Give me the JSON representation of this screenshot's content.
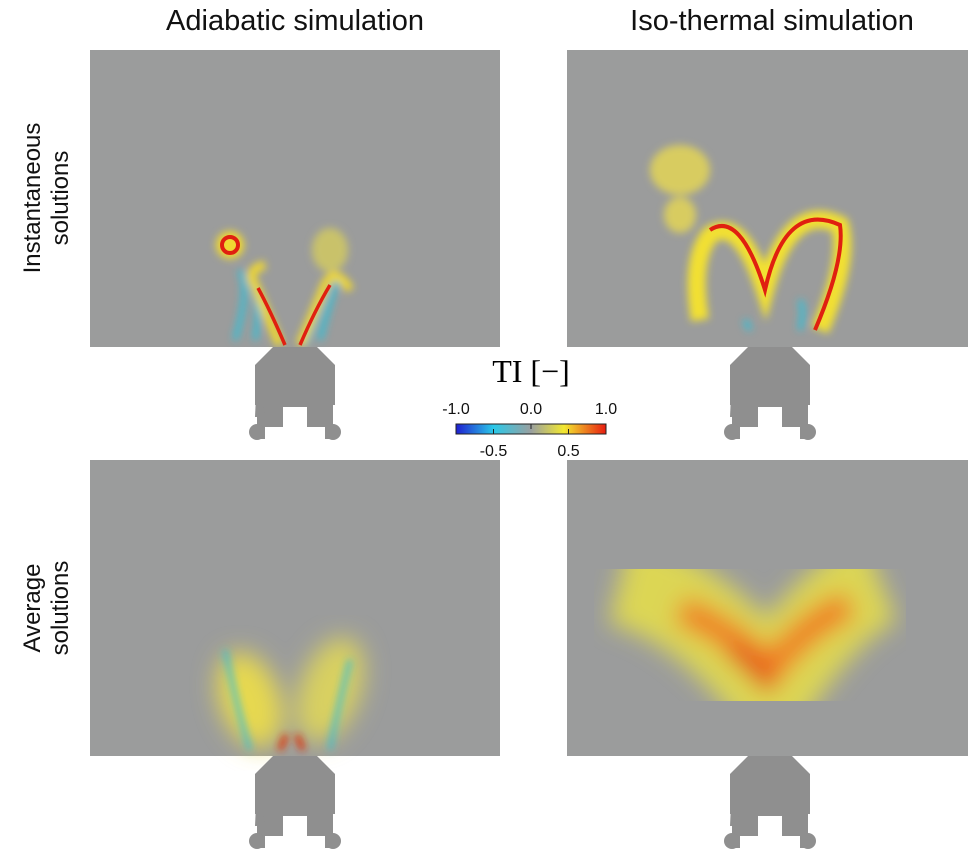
{
  "columns": [
    "Adiabatic simulation",
    "Iso-thermal simulation"
  ],
  "rows": [
    {
      "label_lines": [
        "Instantaneous",
        "solutions"
      ]
    },
    {
      "label_lines": [
        "Average",
        "solutions"
      ]
    }
  ],
  "colorbar": {
    "label": "TI [−]",
    "lim": [
      -1,
      1
    ],
    "ticks_top": [
      {
        "value": -1,
        "label": "-1.0"
      },
      {
        "value": 0,
        "label": "0.0"
      },
      {
        "value": 1,
        "label": "1.0"
      }
    ],
    "ticks_bottom": [
      -0.5,
      0.5
    ]
  }
}
